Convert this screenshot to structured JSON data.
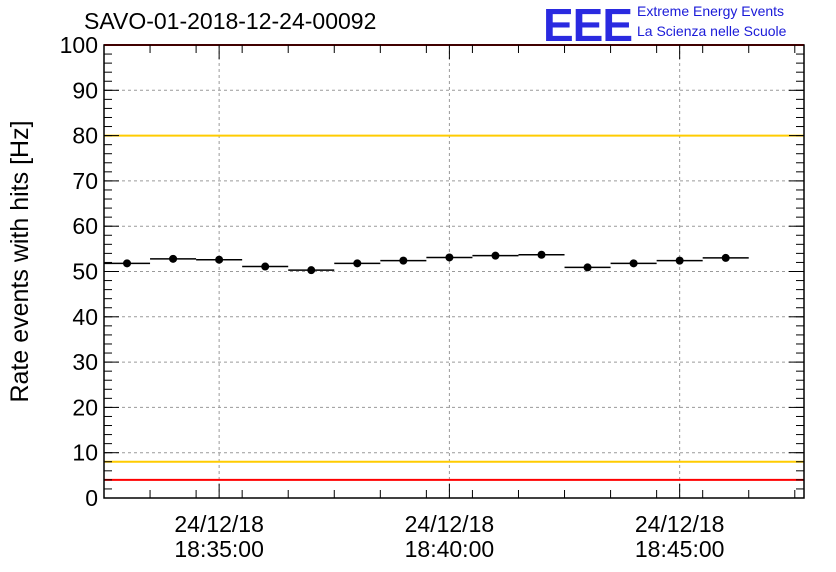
{
  "header": {
    "title": "SAVO-01-2018-12-24-00092",
    "logo": {
      "mark": "EEE",
      "line1": "Extreme Energy Events",
      "line2": "La Scienza nelle Scuole",
      "color": "#2a2ae0"
    }
  },
  "chart_data": {
    "type": "scatter",
    "ylabel": "Rate events with hits [Hz]",
    "xlabel": "",
    "ylim": [
      0,
      100
    ],
    "yticks": [
      0,
      10,
      20,
      30,
      40,
      50,
      60,
      70,
      80,
      90,
      100
    ],
    "grid": true,
    "x_unit": "minutes since 18:32:30",
    "xlim": [
      0,
      15.2
    ],
    "xticks": [
      {
        "x": 2.5,
        "date": "24/12/18",
        "time": "18:35:00"
      },
      {
        "x": 7.5,
        "date": "24/12/18",
        "time": "18:40:00"
      },
      {
        "x": 12.5,
        "date": "24/12/18",
        "time": "18:45:00"
      }
    ],
    "series": [
      {
        "name": "rate",
        "bin_width": 1,
        "x": [
          0.5,
          1.5,
          2.5,
          3.5,
          4.5,
          5.5,
          6.5,
          7.5,
          8.5,
          9.5,
          10.5,
          11.5,
          12.5,
          13.5
        ],
        "values": [
          51.8,
          52.8,
          52.6,
          51.1,
          50.3,
          51.8,
          52.4,
          53.1,
          53.5,
          53.7,
          50.9,
          51.8,
          52.4,
          53.0
        ],
        "color": "#000000"
      }
    ],
    "reference_lines": [
      {
        "y": 100,
        "color": "#ff0000"
      },
      {
        "y": 80,
        "color": "#ffcc00"
      },
      {
        "y": 8,
        "color": "#ffcc00"
      },
      {
        "y": 4,
        "color": "#ff0000"
      }
    ]
  }
}
